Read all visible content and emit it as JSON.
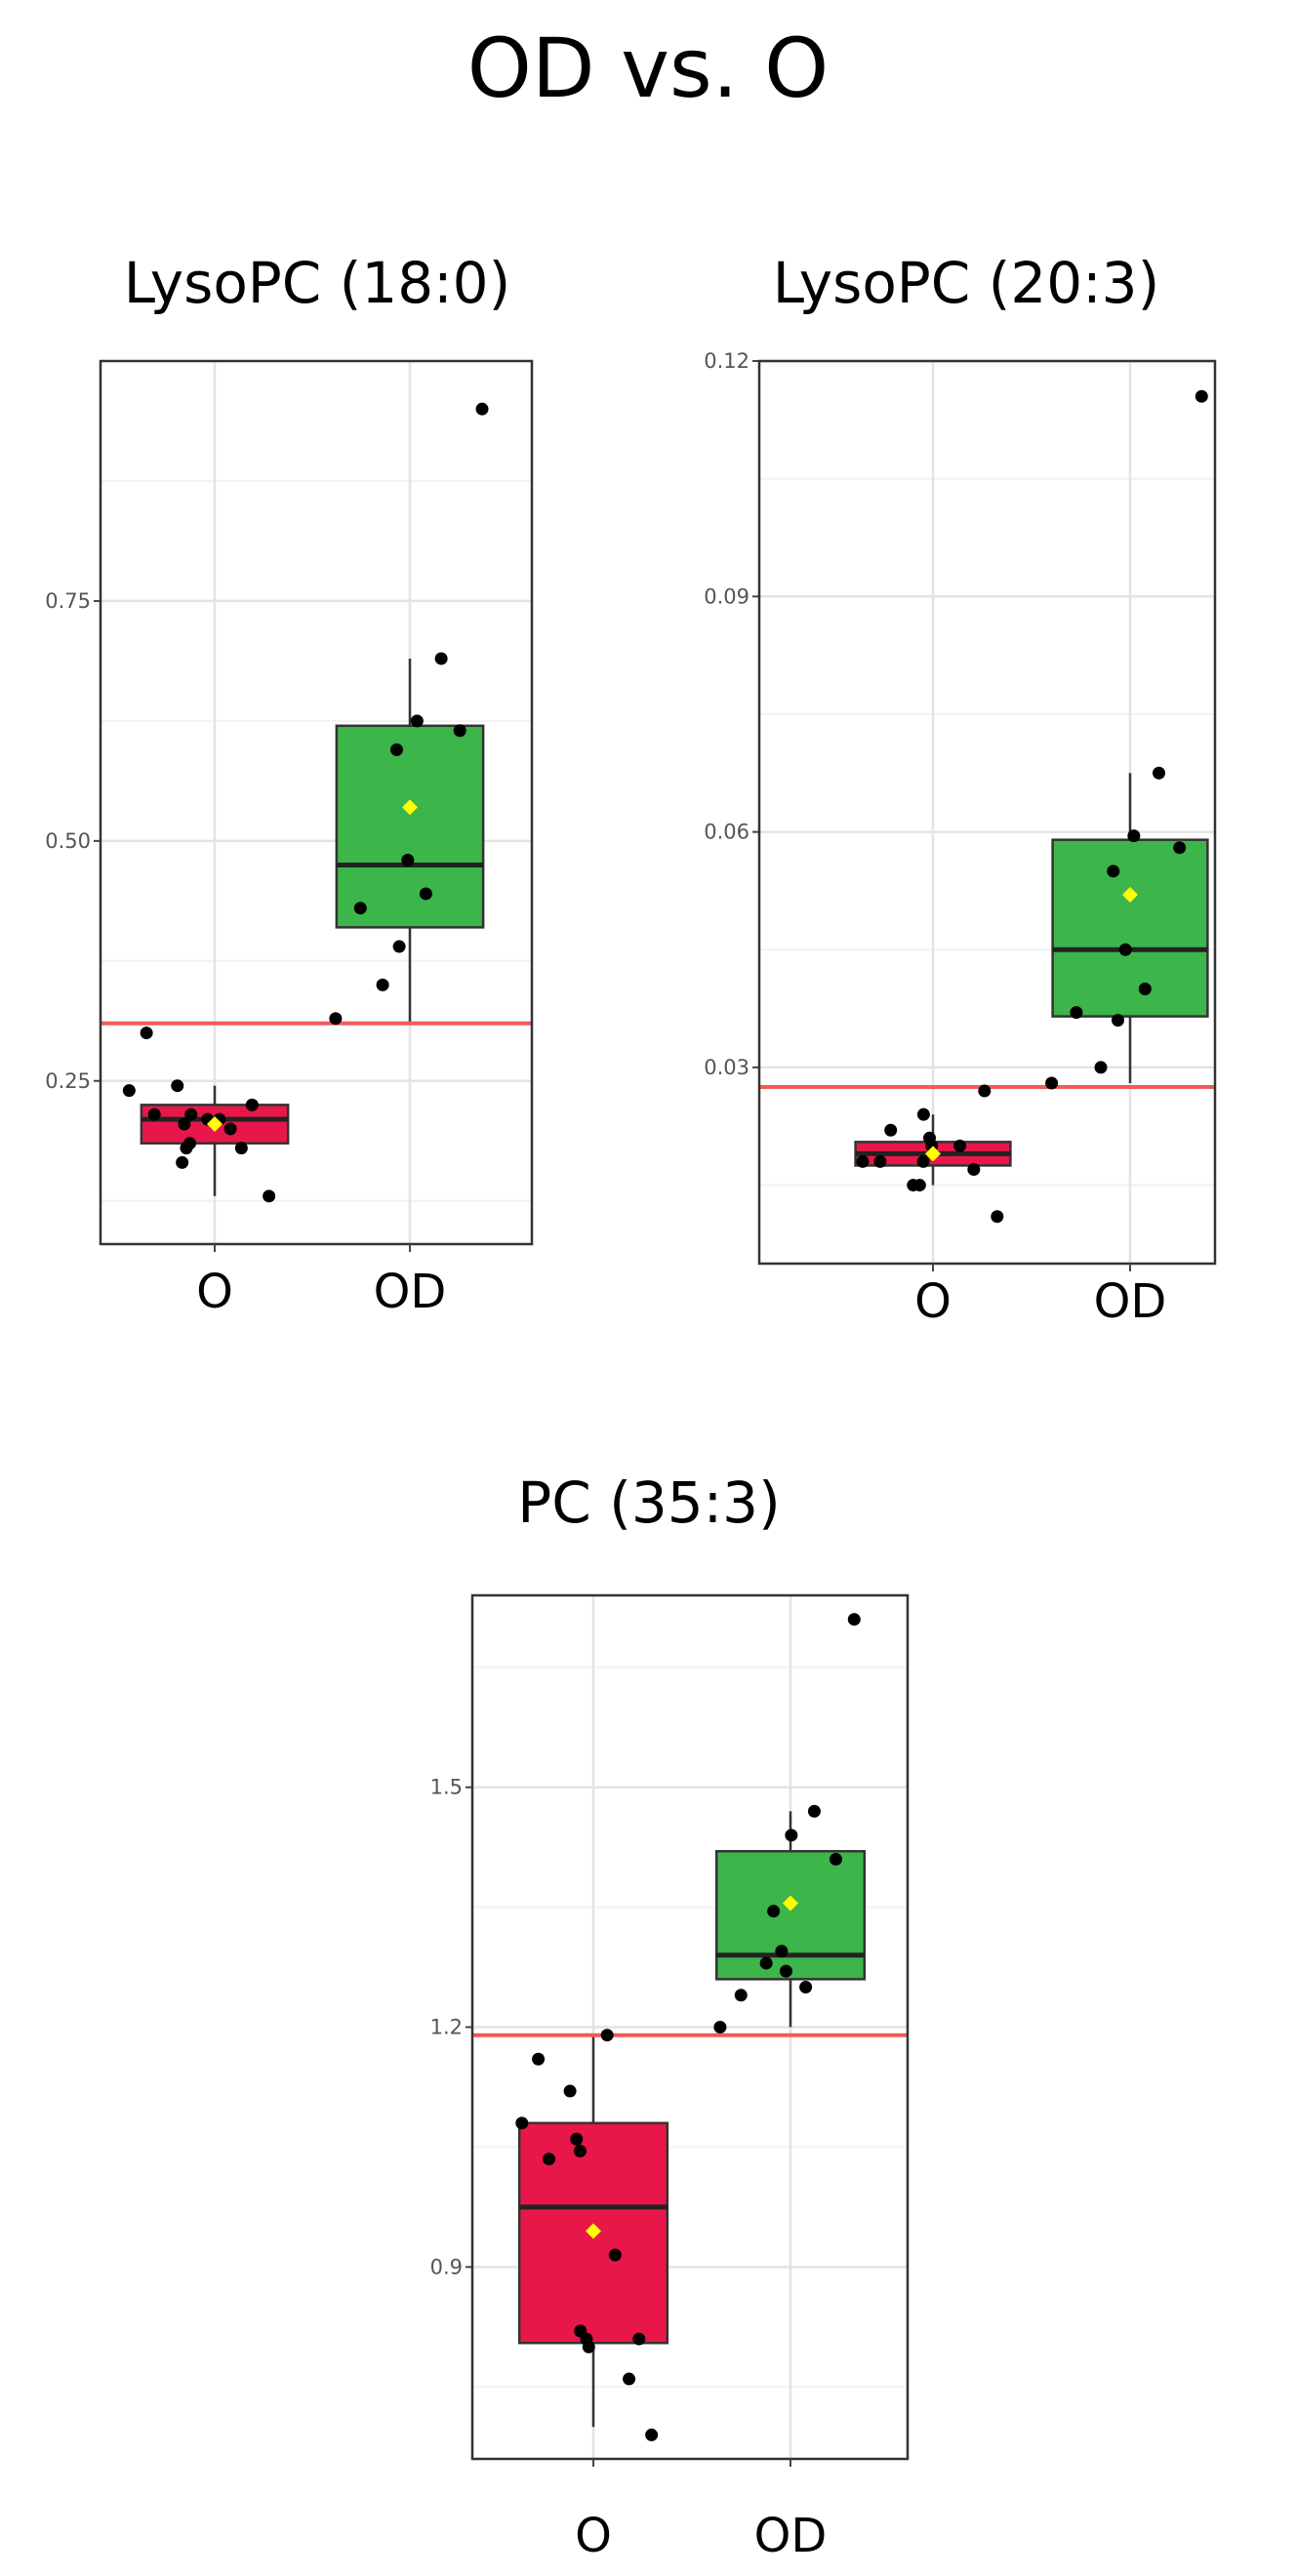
{
  "title": "OD vs. O",
  "colors": {
    "O": "#e8174a",
    "OD": "#3cb54a",
    "mean": "#ffff00",
    "threshold": "#f25a5a",
    "point": "#000000"
  },
  "chart_data": [
    {
      "type": "boxplot",
      "title": "LysoPC (18:0)",
      "categories": [
        "O",
        "OD"
      ],
      "ylim": [
        0.08,
        1.0
      ],
      "yticks": [
        "0.25",
        "0.50",
        "0.75"
      ],
      "yticks_values": [
        0.25,
        0.5,
        0.75
      ],
      "threshold": 0.31,
      "grid": true,
      "boxes": [
        {
          "group": "O",
          "min": 0.13,
          "q1": 0.185,
          "median": 0.21,
          "q3": 0.225,
          "max": 0.245,
          "mean": 0.205,
          "points": [
            0.3,
            0.245,
            0.24,
            0.18,
            0.165,
            0.215,
            0.21,
            0.205,
            0.185,
            0.18,
            0.215,
            0.2,
            0.225,
            0.21,
            0.13
          ]
        },
        {
          "group": "OD",
          "min": 0.31,
          "q1": 0.41,
          "median": 0.475,
          "q3": 0.62,
          "max": 0.69,
          "mean": 0.535,
          "points": [
            0.95,
            0.69,
            0.625,
            0.615,
            0.595,
            0.48,
            0.445,
            0.43,
            0.39,
            0.35,
            0.315
          ]
        }
      ]
    },
    {
      "type": "boxplot",
      "title": "LysoPC (20:3)",
      "categories": [
        "O",
        "OD"
      ],
      "ylim": [
        0.005,
        0.12
      ],
      "yticks": [
        "0.03",
        "0.06",
        "0.09",
        "0.12"
      ],
      "yticks_values": [
        0.03,
        0.06,
        0.09,
        0.12
      ],
      "threshold": 0.0275,
      "grid": true,
      "boxes": [
        {
          "group": "O",
          "min": 0.015,
          "q1": 0.0175,
          "median": 0.019,
          "q3": 0.0205,
          "max": 0.024,
          "mean": 0.019,
          "points": [
            0.018,
            0.015,
            0.018,
            0.024,
            0.015,
            0.022,
            0.02,
            0.018,
            0.021,
            0.027,
            0.02,
            0.017,
            0.011
          ]
        },
        {
          "group": "OD",
          "min": 0.028,
          "q1": 0.0365,
          "median": 0.045,
          "q3": 0.059,
          "max": 0.0675,
          "mean": 0.052,
          "points": [
            0.1155,
            0.0675,
            0.0595,
            0.058,
            0.055,
            0.045,
            0.04,
            0.037,
            0.036,
            0.03,
            0.028
          ]
        }
      ]
    },
    {
      "type": "boxplot",
      "title": "PC (35:3)",
      "categories": [
        "O",
        "OD"
      ],
      "ylim": [
        0.66,
        1.74
      ],
      "yticks": [
        "0.9",
        "1.2",
        "1.5"
      ],
      "yticks_values": [
        0.9,
        1.2,
        1.5
      ],
      "threshold": 1.19,
      "grid": true,
      "boxes": [
        {
          "group": "O",
          "min": 0.7,
          "q1": 0.805,
          "median": 0.975,
          "q3": 1.08,
          "max": 1.19,
          "mean": 0.945,
          "points": [
            1.16,
            1.12,
            1.08,
            1.045,
            1.06,
            1.035,
            0.915,
            0.82,
            0.81,
            0.81,
            0.8,
            0.76,
            0.69,
            1.19
          ]
        },
        {
          "group": "OD",
          "min": 1.2,
          "q1": 1.26,
          "median": 1.29,
          "q3": 1.42,
          "max": 1.47,
          "mean": 1.355,
          "points": [
            1.71,
            1.47,
            1.44,
            1.41,
            1.345,
            1.27,
            1.25,
            1.24,
            1.295,
            1.28,
            1.2
          ]
        }
      ]
    }
  ]
}
